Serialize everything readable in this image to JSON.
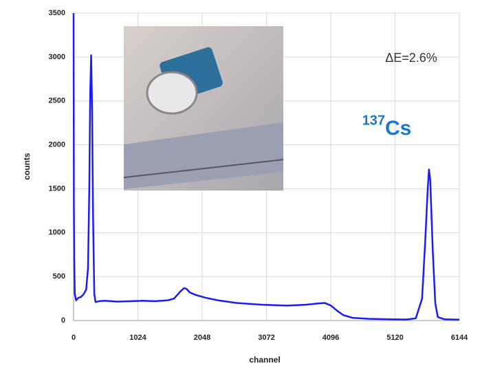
{
  "chart_data": {
    "type": "line",
    "x_label": "channel",
    "y_label": "counts",
    "annotations": [
      "ΔE=2.6%",
      "137",
      "Cs"
    ],
    "x": [
      0,
      5,
      10,
      20,
      40,
      80,
      120,
      160,
      200,
      230,
      250,
      265,
      280,
      295,
      310,
      330,
      350,
      400,
      500,
      700,
      900,
      1100,
      1300,
      1500,
      1600,
      1700,
      1760,
      1800,
      1850,
      1950,
      2100,
      2300,
      2600,
      3000,
      3400,
      3700,
      3900,
      4000,
      4100,
      4200,
      4300,
      4450,
      4700,
      5000,
      5300,
      5450,
      5550,
      5600,
      5640,
      5660,
      5680,
      5720,
      5760,
      5800,
      5900,
      6144
    ],
    "series": [
      {
        "color": "#1a1aff",
        "values": [
          3500,
          1300,
          700,
          300,
          230,
          260,
          270,
          300,
          350,
          600,
          1500,
          2600,
          3020,
          2400,
          1200,
          300,
          210,
          220,
          225,
          215,
          220,
          225,
          220,
          230,
          250,
          330,
          370,
          360,
          320,
          290,
          260,
          230,
          200,
          180,
          170,
          180,
          195,
          200,
          170,
          110,
          60,
          30,
          20,
          15,
          12,
          25,
          250,
          900,
          1500,
          1720,
          1600,
          800,
          200,
          40,
          15,
          10
        ]
      }
    ],
    "xlim": [
      0,
      6144
    ],
    "xticks": [
      0,
      1024,
      2048,
      3072,
      4096,
      5120,
      6144
    ],
    "ylim": [
      0,
      3500
    ],
    "yticks": [
      0,
      500,
      1000,
      1500,
      2000,
      2500,
      3000,
      3500
    ],
    "grid": true
  }
}
